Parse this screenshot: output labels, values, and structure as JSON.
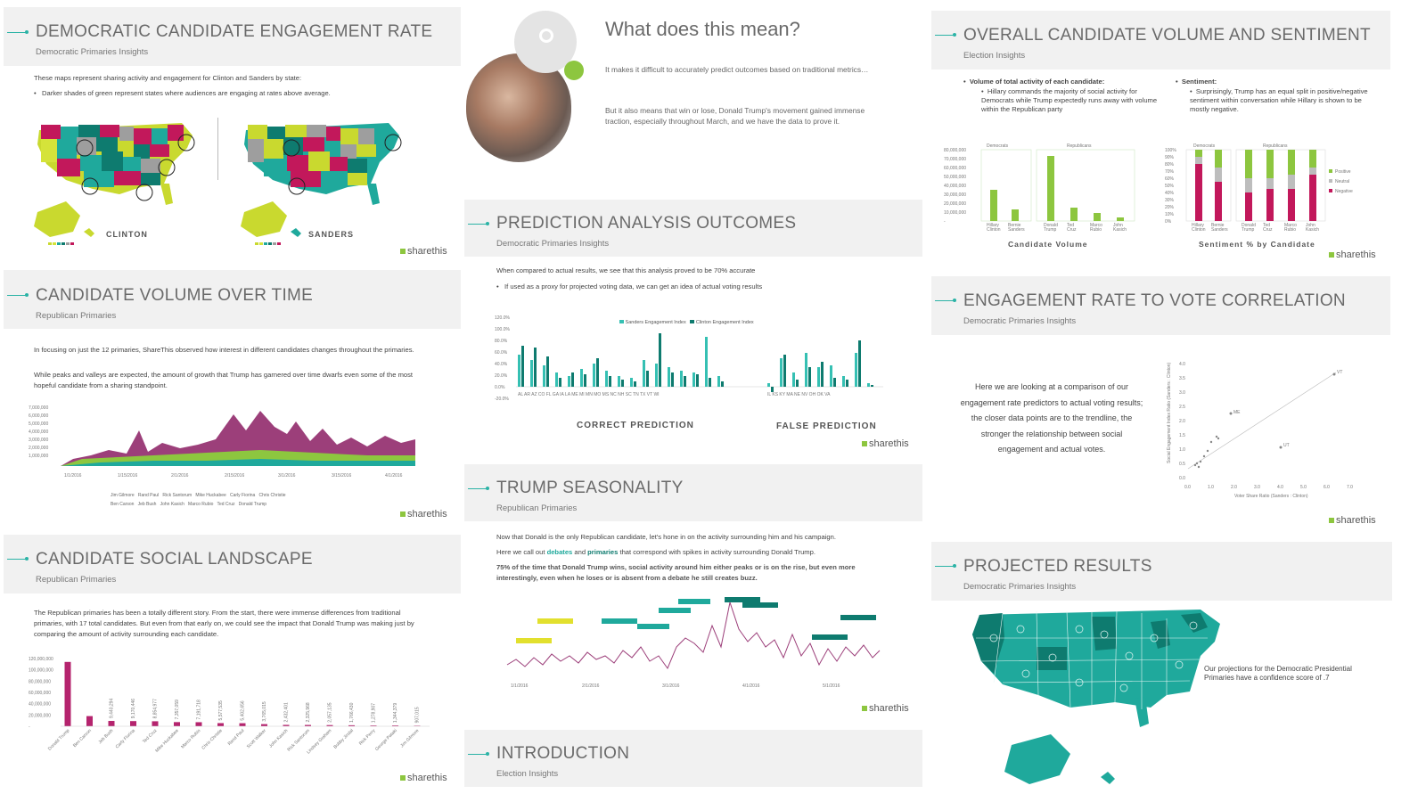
{
  "slides": {
    "dem_engagement": {
      "title": "DEMOCRATIC CANDIDATE ENGAGEMENT RATE",
      "subtitle": "Democratic Primaries Insights",
      "text1": "These maps represent sharing activity and engagement for Clinton and Sanders by state:",
      "bullet1": "Darker shades of green represent states where audiences are engaging at rates above average.",
      "map_left_label": "CLINTON",
      "map_right_label": "SANDERS"
    },
    "what_mean": {
      "title": "What does this mean?",
      "p1": "It makes it difficult to accurately predict outcomes based on traditional metrics…",
      "p2": "But it also means that win or lose, Donald Trump's movement gained immense traction, especially throughout March, and we have the data to prove it."
    },
    "overall_volume": {
      "title": "OVERALL CANDIDATE VOLUME AND SENTIMENT",
      "subtitle": "Election Insights",
      "col1_head": "Volume of total activity of each candidate:",
      "col1_text": "Hillary commands the majority of social activity for Democrats while Trump expectedly runs away with volume within the Republican party",
      "col2_head": "Sentiment:",
      "col2_text": "Surprisingly, Trump has an equal split in positive/negative sentiment within conversation while Hillary is shown to be mostly negative.",
      "chart1_label": "Candidate Volume",
      "chart2_label": "Sentiment % by Candidate",
      "dem_label": "Democrats",
      "rep_label": "Republicans",
      "legend": [
        "Positive",
        "Neutral",
        "Negative"
      ]
    },
    "volume_over_time": {
      "title": "CANDIDATE VOLUME OVER TIME",
      "subtitle": "Republican Primaries",
      "p1": "In focusing on just the 12 primaries, ShareThis observed how interest in different candidates changes throughout the primaries.",
      "p2": "While peaks and valleys are expected, the amount of growth that Trump has garnered over time dwarfs even some of the most hopeful candidate from a sharing standpoint.",
      "legend": [
        "Jim Gilmore",
        "Rand Paul",
        "Rick Santorum",
        "Mike Huckabee",
        "Carly Fiorina",
        "Chris Christie",
        "Ben Carson",
        "Jeb Bush",
        "John Kasich",
        "Marco Rubio",
        "Ted Cruz",
        "Donald Trump"
      ]
    },
    "prediction": {
      "title": "PREDICTION ANALYSIS OUTCOMES",
      "subtitle": "Democratic Primaries Insights",
      "text1": "When compared to actual results, we see that this analysis proved to be 70% accurate",
      "bullet1": "If used as a proxy for projected voting data, we can get an idea of actual voting results",
      "legend": [
        "Sanders Engagement Index",
        "Clinton Engagement Index"
      ],
      "correct_label": "CORRECT PREDICTION",
      "false_label": "FALSE PREDICTION"
    },
    "engagement_vote": {
      "title": "ENGAGEMENT RATE TO VOTE CORRELATION",
      "subtitle": "Democratic Primaries Insights",
      "text": "Here we are looking at a comparison of our engagement rate predictors to actual voting results; the closer data points are to the trendline, the stronger the relationship between social engagement and actual votes.",
      "xlabel": "Voter Share Ratio (Sanders : Clinton)",
      "ylabel": "Social Engagement Index Ratio (Sanders : Clinton)"
    },
    "social_landscape": {
      "title": "CANDIDATE SOCIAL LANDSCAPE",
      "subtitle": "Republican Primaries",
      "text": "The Republican primaries has been a totally different story. From the start, there were immense differences from traditional primaries, with 17 total candidates. But even from that early on, we could see the impact that Donald Trump was making just by comparing the amount of activity surrounding each candidate."
    },
    "trump_season": {
      "title": "TRUMP SEASONALITY",
      "subtitle": "Republican Primaries",
      "p1": "Now that Donald is the only Republican candidate, let's hone in on the activity surrounding him and his campaign.",
      "p2a": "Here we call out ",
      "p2b": "debates",
      "p2c": " and ",
      "p2d": "primaries",
      "p2e": " that correspond with spikes in activity surrounding Donald Trump.",
      "p3": "75% of the time that Donald Trump wins, social activity around him either peaks or is on the rise, but even more interestingly, even when he loses or is absent from a debate he still creates buzz."
    },
    "introduction": {
      "title": "INTRODUCTION",
      "subtitle": "Election Insights"
    },
    "projected": {
      "title": "PROJECTED RESULTS",
      "subtitle": "Democratic Primaries Insights",
      "text": "Our projections for the Democratic Presidential Primaries have a confidence score of .7"
    },
    "logo_text": "sharethis"
  },
  "colors": {
    "teal": "#1fa99c",
    "dark_teal": "#0e7b6f",
    "green": "#8dc63f",
    "magenta": "#c2185b",
    "grey": "#9e9e9e"
  },
  "chart_data": [
    {
      "type": "bar",
      "title": "Candidate Volume",
      "categories": [
        "Hillary Clinton",
        "Bernie Sanders",
        "Donald Trump",
        "Ted Cruz",
        "Marco Rubio",
        "John Kasich"
      ],
      "values": [
        35000000,
        13000000,
        73000000,
        15000000,
        9000000,
        4000000
      ],
      "ylim": [
        0,
        80000000
      ]
    },
    {
      "type": "bar",
      "title": "Sentiment % by Candidate",
      "categories": [
        "Hillary Clinton",
        "Bernie Sanders",
        "Donald Trump",
        "Ted Cruz",
        "Marco Rubio",
        "John Kasich"
      ],
      "series": [
        {
          "name": "Positive",
          "values": [
            10,
            25,
            40,
            40,
            35,
            25
          ]
        },
        {
          "name": "Neutral",
          "values": [
            10,
            20,
            20,
            15,
            20,
            10
          ]
        },
        {
          "name": "Negative",
          "values": [
            80,
            55,
            40,
            45,
            45,
            65
          ]
        }
      ],
      "ylim": [
        0,
        100
      ]
    },
    {
      "type": "bar",
      "title": "Candidate Social Landscape",
      "categories": [
        "Donald Trump",
        "Ben Carson",
        "Jeb Bush",
        "Carly Fiorina",
        "Ted Cruz",
        "Mike Huckabee",
        "Marco Rubio",
        "Chris Christie",
        "Rand Paul",
        "Scott Walker",
        "John Kasich",
        "Rick Santorum",
        "Lindsey Graham",
        "Bobby Jindal",
        "Rick Perry",
        "George Pataki",
        "Jim Gilmore"
      ],
      "values": [
        114000000,
        18000000,
        9440294,
        9170446,
        8854977,
        7357059,
        7191718,
        5577535,
        5402656,
        3765015,
        2432401,
        2325968,
        2057135,
        1766430,
        1278907,
        1344379,
        907015
      ],
      "ylim": [
        0,
        120000000
      ]
    }
  ]
}
